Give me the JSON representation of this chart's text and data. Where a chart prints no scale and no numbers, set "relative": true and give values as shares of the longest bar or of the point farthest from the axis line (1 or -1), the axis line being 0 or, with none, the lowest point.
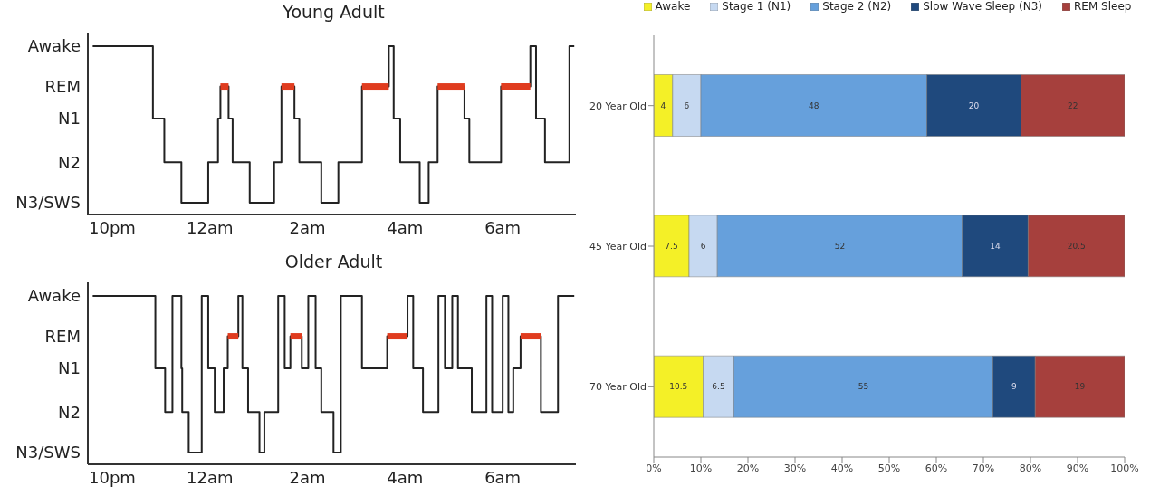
{
  "chart_data": [
    {
      "type": "step",
      "title": "Young Adult",
      "relative": true,
      "annotations": [
        "Awake",
        "REM",
        "N1",
        "N2",
        "N3/SWS"
      ],
      "xlim": [
        "--01-01T21:30",
        "--01-02T07:30"
      ],
      "xticks": [
        {
          "value": "--01-01T22:00",
          "label": "10pm"
        },
        {
          "value": "--01-02T00:00",
          "label": "12am"
        },
        {
          "value": "--01-02T02:00",
          "label": "2am"
        },
        {
          "value": "--01-02T04:00",
          "label": "4am"
        },
        {
          "value": "--01-02T06:00",
          "label": "6am"
        }
      ],
      "grid": false,
      "legend": false,
      "series": [
        {
          "color": "#222222",
          "x": [
            "--01-01T21:36",
            "--01-01T22:50",
            "--01-01T23:04",
            "--01-01T23:25",
            "--01-01T23:58",
            "--01-02T00:10",
            "--01-02T00:13",
            "--01-02T00:23",
            "--01-02T00:28",
            "--01-02T00:49",
            "--01-02T01:19",
            "--01-02T01:28",
            "--01-02T01:44",
            "--01-02T01:50",
            "--01-02T02:17",
            "--01-02T02:38",
            "--01-02T03:07",
            "--01-02T03:40",
            "--01-02T03:46",
            "--01-02T03:54",
            "--01-02T04:18",
            "--01-02T04:29",
            "--01-02T04:40",
            "--01-02T05:13",
            "--01-02T05:19",
            "--01-02T05:58",
            "--01-02T06:34",
            "--01-02T06:41",
            "--01-02T06:52",
            "--01-02T07:22",
            "--01-02T07:28"
          ],
          "values": [
            1,
            0.57,
            0.31,
            0.07,
            0.31,
            0.57,
            0.76,
            0.57,
            0.31,
            0.07,
            0.31,
            0.76,
            0.57,
            0.31,
            0.07,
            0.31,
            0.76,
            1,
            0.57,
            0.31,
            0.07,
            0.31,
            0.76,
            0.57,
            0.31,
            0.76,
            1,
            0.57,
            0.31,
            1,
            1
          ]
        },
        {
          "type": "line",
          "color": "#e03c1f",
          "x": [
            "--01-02T00:13",
            "--01-02T00:23"
          ],
          "values": [
            0.76,
            0.76
          ]
        },
        {
          "type": "line",
          "color": "#e03c1f",
          "x": [
            "--01-02T01:28",
            "--01-02T01:44"
          ],
          "values": [
            0.76,
            0.76
          ]
        },
        {
          "type": "line",
          "color": "#e03c1f",
          "x": [
            "--01-02T03:07",
            "--01-02T03:40"
          ],
          "values": [
            0.76,
            0.76
          ]
        },
        {
          "type": "line",
          "color": "#e03c1f",
          "x": [
            "--01-02T04:40",
            "--01-02T05:13"
          ],
          "values": [
            0.76,
            0.76
          ]
        },
        {
          "type": "line",
          "color": "#e03c1f",
          "x": [
            "--01-02T05:58",
            "--01-02T06:34"
          ],
          "values": [
            0.76,
            0.76
          ]
        }
      ]
    },
    {
      "type": "step",
      "title": "Older Adult",
      "relative": true,
      "annotations": [
        "Awake",
        "REM",
        "N1",
        "N2",
        "N3/SWS"
      ],
      "xlim": [
        "--01-01T21:30",
        "--01-02T07:30"
      ],
      "xticks": [
        {
          "value": "--01-01T22:00",
          "label": "10pm"
        },
        {
          "value": "--01-02T00:00",
          "label": "12am"
        },
        {
          "value": "--01-02T02:00",
          "label": "2am"
        },
        {
          "value": "--01-02T04:00",
          "label": "4am"
        },
        {
          "value": "--01-02T06:00",
          "label": "6am"
        }
      ],
      "grid": false,
      "legend": false,
      "series": [
        {
          "color": "#222222",
          "x": [
            "--01-01T21:36",
            "--01-01T22:53",
            "--01-01T23:05",
            "--01-01T23:14",
            "--01-01T23:25",
            "--01-01T23:26",
            "--01-01T23:34",
            "--01-01T23:50",
            "--01-01T23:58",
            "--01-02T00:06",
            "--01-02T00:17",
            "--01-02T00:22",
            "--01-02T00:35",
            "--01-02T00:40",
            "--01-02T00:47",
            "--01-02T01:01",
            "--01-02T01:07",
            "--01-02T01:24",
            "--01-02T01:32",
            "--01-02T01:39",
            "--01-02T01:53",
            "--01-02T02:01",
            "--01-02T02:10",
            "--01-02T02:17",
            "--01-02T02:32",
            "--01-02T02:41",
            "--01-02T03:07",
            "--01-02T03:38",
            "--01-02T04:03",
            "--01-02T04:10",
            "--01-02T04:22",
            "--01-02T04:41",
            "--01-02T04:49",
            "--01-02T04:58",
            "--01-02T05:05",
            "--01-02T05:22",
            "--01-02T05:40",
            "--01-02T05:47",
            "--01-02T06:00",
            "--01-02T06:07",
            "--01-02T06:13",
            "--01-02T06:22",
            "--01-02T06:47",
            "--01-02T07:08",
            "--01-02T07:28"
          ],
          "values": [
            1,
            0.57,
            0.31,
            1,
            0.57,
            0.31,
            0.07,
            1,
            0.57,
            0.31,
            0.57,
            0.76,
            1,
            0.57,
            0.31,
            0.07,
            0.31,
            1,
            0.57,
            0.76,
            0.57,
            1,
            0.57,
            0.31,
            0.07,
            1,
            0.57,
            0.76,
            1,
            0.57,
            0.31,
            1,
            0.57,
            1,
            0.57,
            0.31,
            1,
            0.31,
            1,
            0.31,
            0.57,
            0.76,
            0.31,
            1,
            1
          ]
        },
        {
          "type": "line",
          "color": "#e03c1f",
          "x": [
            "--01-02T00:22",
            "--01-02T00:35"
          ],
          "values": [
            0.76,
            0.76
          ]
        },
        {
          "type": "line",
          "color": "#e03c1f",
          "x": [
            "--01-02T01:39",
            "--01-02T01:53"
          ],
          "values": [
            0.76,
            0.76
          ]
        },
        {
          "type": "line",
          "color": "#e03c1f",
          "x": [
            "--01-02T03:38",
            "--01-02T04:03"
          ],
          "values": [
            0.76,
            0.76
          ]
        },
        {
          "type": "line",
          "color": "#e03c1f",
          "x": [
            "--01-02T06:22",
            "--01-02T06:47"
          ],
          "values": [
            0.76,
            0.76
          ]
        }
      ]
    },
    {
      "type": "bar",
      "orientation": "horizontal",
      "stacked": true,
      "data_labels": true,
      "legend": "top",
      "grid": false,
      "categories": [
        "20 Year Old",
        "45 Year Old",
        "70 Year Old"
      ],
      "xlim": [
        0,
        100
      ],
      "xticks": [
        {
          "value": 0,
          "label": "0%"
        },
        {
          "value": 10,
          "label": "10%"
        },
        {
          "value": 20,
          "label": "20%"
        },
        {
          "value": 30,
          "label": "30%"
        },
        {
          "value": 40,
          "label": "40%"
        },
        {
          "value": 50,
          "label": "50%"
        },
        {
          "value": 60,
          "label": "60%"
        },
        {
          "value": 70,
          "label": "70%"
        },
        {
          "value": 80,
          "label": "80%"
        },
        {
          "value": 90,
          "label": "90%"
        },
        {
          "value": 100,
          "label": "100%"
        }
      ],
      "series": [
        {
          "name": "Awake",
          "color": "#f4f027",
          "values": [
            4,
            7.5,
            10.5
          ]
        },
        {
          "name": "Stage 1 (N1)",
          "color": "#c6d9f1",
          "values": [
            6,
            6,
            6.5
          ]
        },
        {
          "name": "Stage 2 (N2)",
          "color": "#66a0dc",
          "values": [
            48,
            52,
            55
          ]
        },
        {
          "name": "Slow Wave Sleep (N3)",
          "color": "#1f497d",
          "values": [
            20,
            14,
            9
          ]
        },
        {
          "name": "REM Sleep",
          "color": "#a6403d",
          "values": [
            22,
            20.5,
            19
          ]
        }
      ]
    }
  ]
}
